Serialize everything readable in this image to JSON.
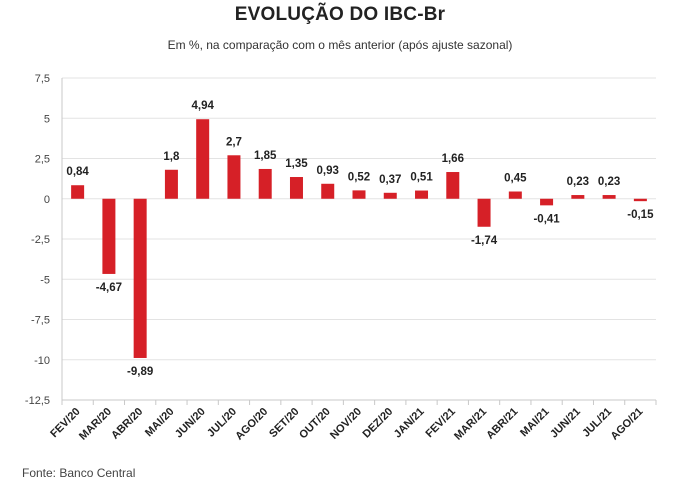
{
  "title": "EVOLUÇÃO DO IBC-Br",
  "subtitle": "Em %, na comparação com o mês anterior (após ajuste sazonal)",
  "source": "Fonte: Banco Central",
  "colors": {
    "bar": "#d62027",
    "grid": "#e3e3e3",
    "text": "#222222"
  },
  "chart_data": {
    "type": "bar",
    "title": "EVOLUÇÃO DO IBC-Br",
    "subtitle": "Em %, na comparação com o mês anterior (após ajuste sazonal)",
    "categories": [
      "FEV/20",
      "MAR/20",
      "ABR/20",
      "MAI/20",
      "JUN/20",
      "JUL/20",
      "AGO/20",
      "SET/20",
      "OUT/20",
      "NOV/20",
      "DEZ/20",
      "JAN/21",
      "FEV/21",
      "MAR/21",
      "ABR/21",
      "MAI/21",
      "JUN/21",
      "JUL/21",
      "AGO/21"
    ],
    "values": [
      0.84,
      -4.67,
      -9.89,
      1.8,
      4.94,
      2.7,
      1.85,
      1.35,
      0.93,
      0.52,
      0.37,
      0.51,
      1.66,
      -1.74,
      0.45,
      -0.41,
      0.23,
      0.23,
      -0.15
    ],
    "data_labels": [
      "0,84",
      "-4,67",
      "-9,89",
      "1,8",
      "4,94",
      "2,7",
      "1,85",
      "1,35",
      "0,93",
      "0,52",
      "0,37",
      "0,51",
      "1,66",
      "-1,74",
      "0,45",
      "-0,41",
      "0,23",
      "0,23",
      "-0,15"
    ],
    "ylim": [
      -12.5,
      7.5
    ],
    "yticks": [
      7.5,
      5,
      2.5,
      0,
      -2.5,
      -5,
      -7.5,
      -10,
      -12.5
    ],
    "ytick_labels": [
      "7,5",
      "5",
      "2,5",
      "0",
      "-2,5",
      "-5",
      "-7,5",
      "-10",
      "-12,5"
    ],
    "grid": true,
    "legend": "none",
    "xlabel": "",
    "ylabel": ""
  }
}
